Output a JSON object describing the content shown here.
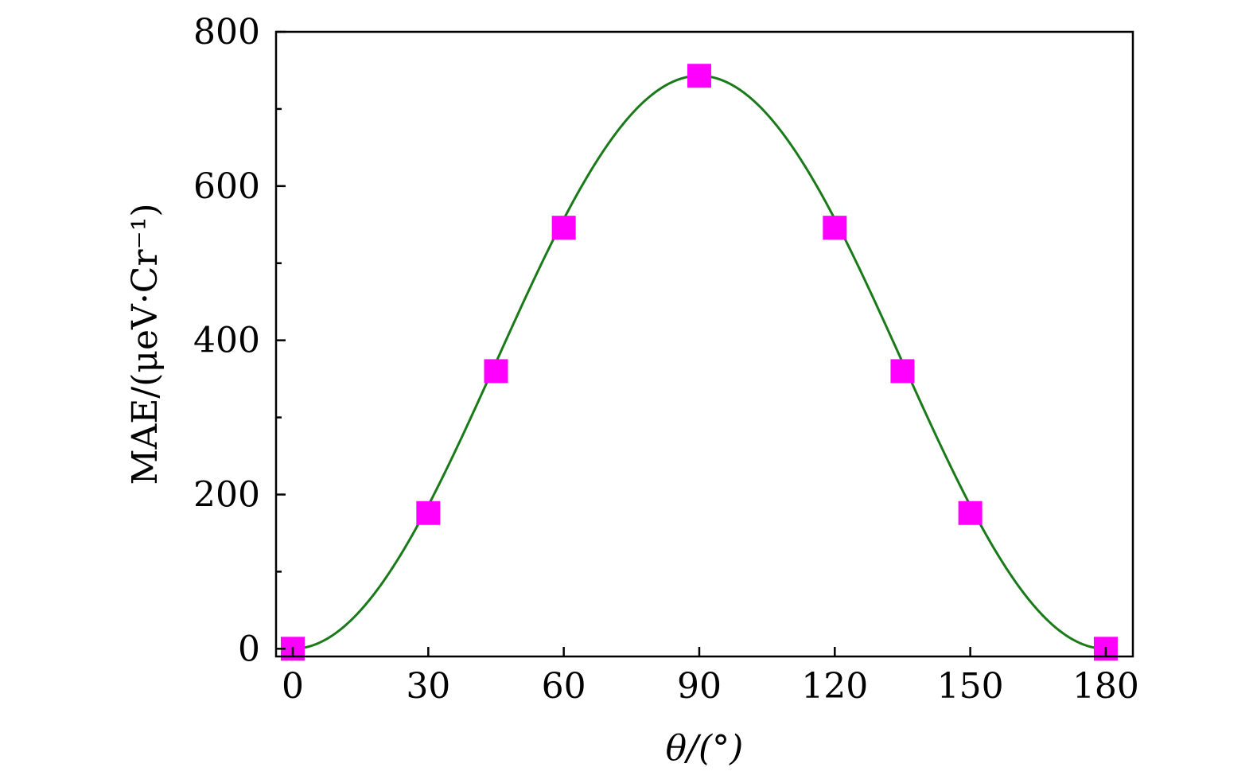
{
  "chart_data": {
    "type": "scatter",
    "title": "",
    "xlabel": "θ/(°)",
    "ylabel": "MAE/(μeV·Cr⁻¹)",
    "xlim": [
      -3.7,
      186
    ],
    "ylim": [
      -10,
      800
    ],
    "xticks": [
      0,
      30,
      60,
      90,
      120,
      150,
      180
    ],
    "xtick_labels": [
      "0",
      "30",
      "60",
      "90",
      "120",
      "150",
      "180"
    ],
    "yticks": [
      0,
      200,
      400,
      600,
      800
    ],
    "ytick_labels": [
      "0",
      "200",
      "400",
      "600",
      "800"
    ],
    "yminor_ticks": [
      100,
      300,
      500,
      700
    ],
    "grid": false,
    "legend": "none",
    "series": [
      {
        "kind": "markers",
        "marker": "square",
        "color": "#ff00ff",
        "x": [
          0,
          30,
          45,
          60,
          90,
          120,
          135,
          150,
          180
        ],
        "y": [
          0,
          176,
          360,
          546,
          743,
          546,
          360,
          176,
          0
        ]
      },
      {
        "kind": "fit-line",
        "color": "#1a7a1a",
        "function": "y = 741 · sin²(θ)"
      }
    ]
  }
}
